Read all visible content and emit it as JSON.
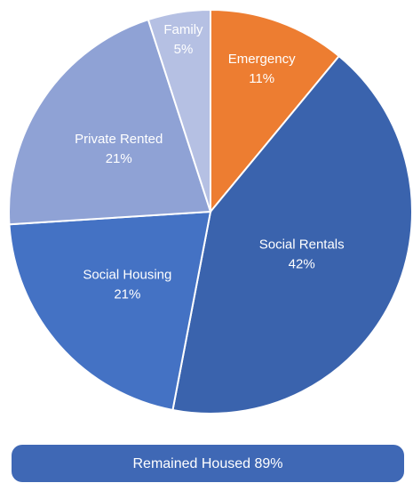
{
  "chart_data": {
    "type": "pie",
    "categories": [
      "Emergency",
      "Social Rentals",
      "Social Housing",
      "Private Rented",
      "Family"
    ],
    "values": [
      11,
      42,
      21,
      21,
      5
    ],
    "value_labels": [
      "11%",
      "42%",
      "21%",
      "21%",
      "5%"
    ],
    "colors": [
      "#ed7d31",
      "#3a63ad",
      "#4472c4",
      "#8fa2d5",
      "#b5c0e3"
    ],
    "annotation": "Remained Housed 89%"
  }
}
